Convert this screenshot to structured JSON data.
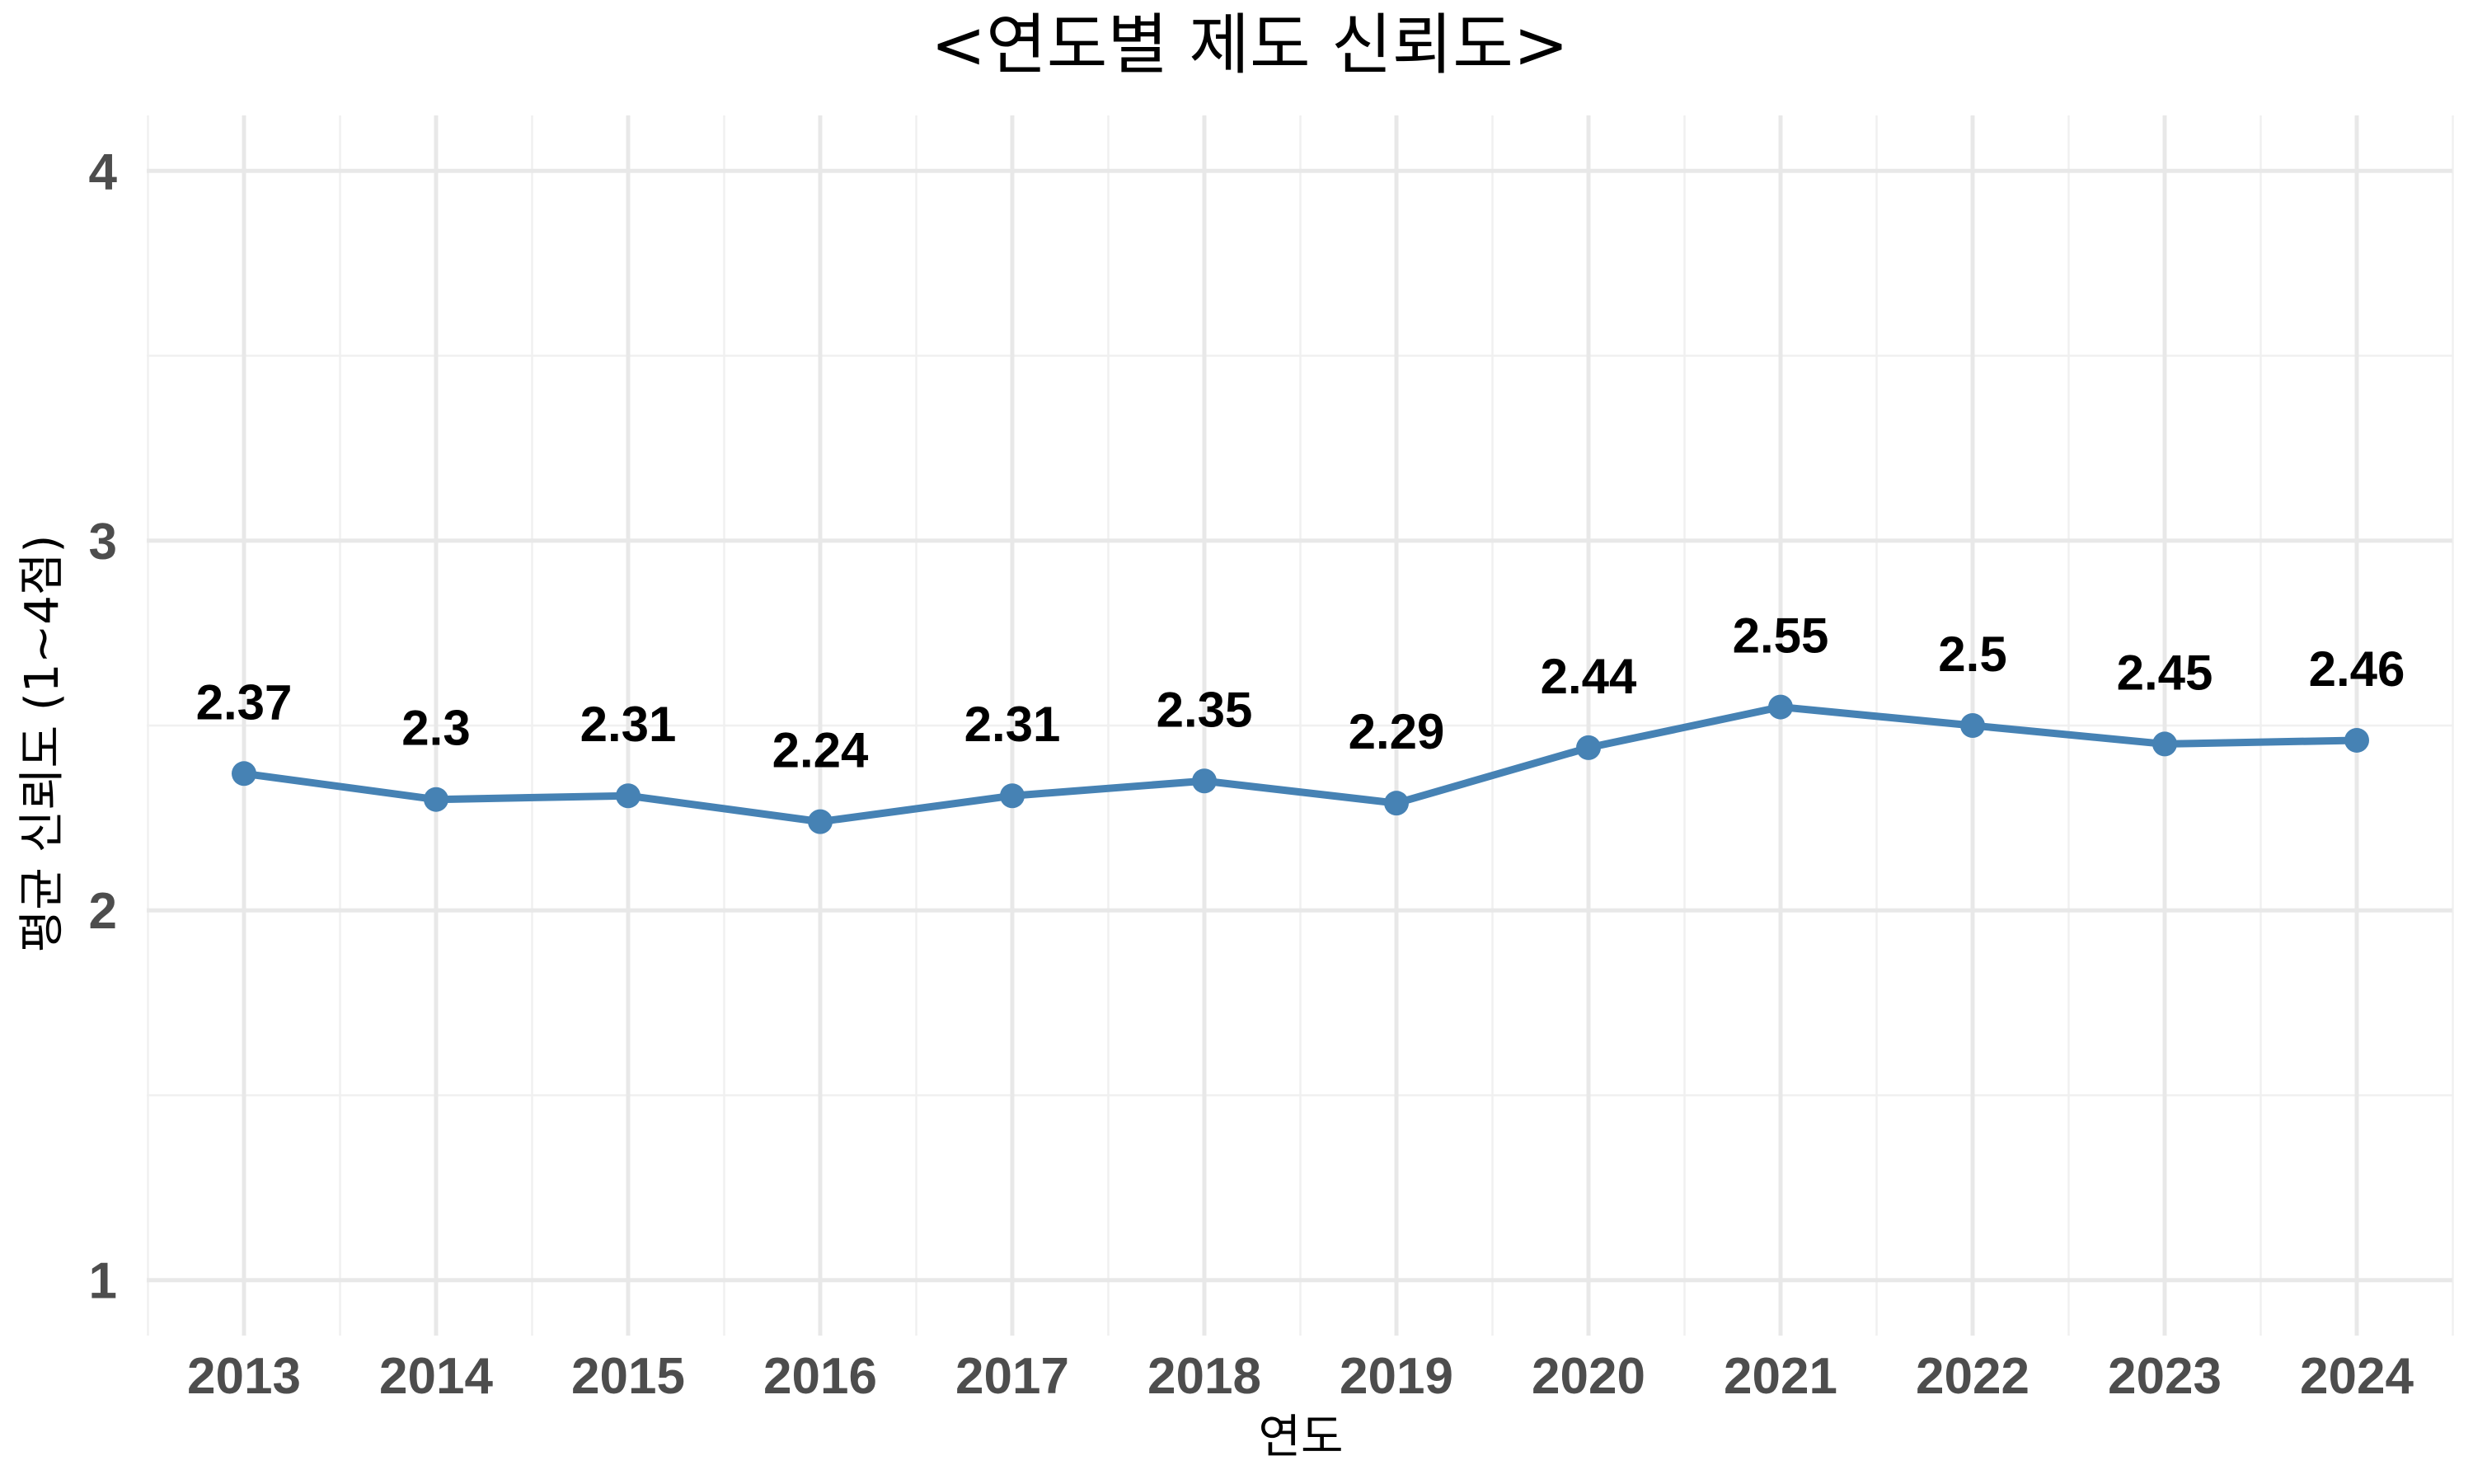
{
  "chart_data": {
    "type": "line",
    "title": "<연도별 제도 신뢰도>",
    "xlabel": "연도",
    "ylabel": "평균 신뢰도 (1~4점)",
    "categories": [
      "2013",
      "2014",
      "2015",
      "2016",
      "2017",
      "2018",
      "2019",
      "2020",
      "2021",
      "2022",
      "2023",
      "2024"
    ],
    "series": [
      {
        "values": [
          2.37,
          2.3,
          2.31,
          2.24,
          2.31,
          2.35,
          2.29,
          2.44,
          2.55,
          2.5,
          2.45,
          2.46
        ],
        "data_labels": [
          "2.37",
          "2.3",
          "2.31",
          "2.24",
          "2.31",
          "2.35",
          "2.29",
          "2.44",
          "2.55",
          "2.5",
          "2.45",
          "2.46"
        ],
        "color": "#4682B4"
      }
    ],
    "ylim": [
      0.85,
      4.15
    ],
    "yticks": [
      1,
      2,
      3,
      4
    ],
    "ytick_labels": [
      "1",
      "2",
      "3",
      "4"
    ],
    "grid": true,
    "legend": "none"
  }
}
